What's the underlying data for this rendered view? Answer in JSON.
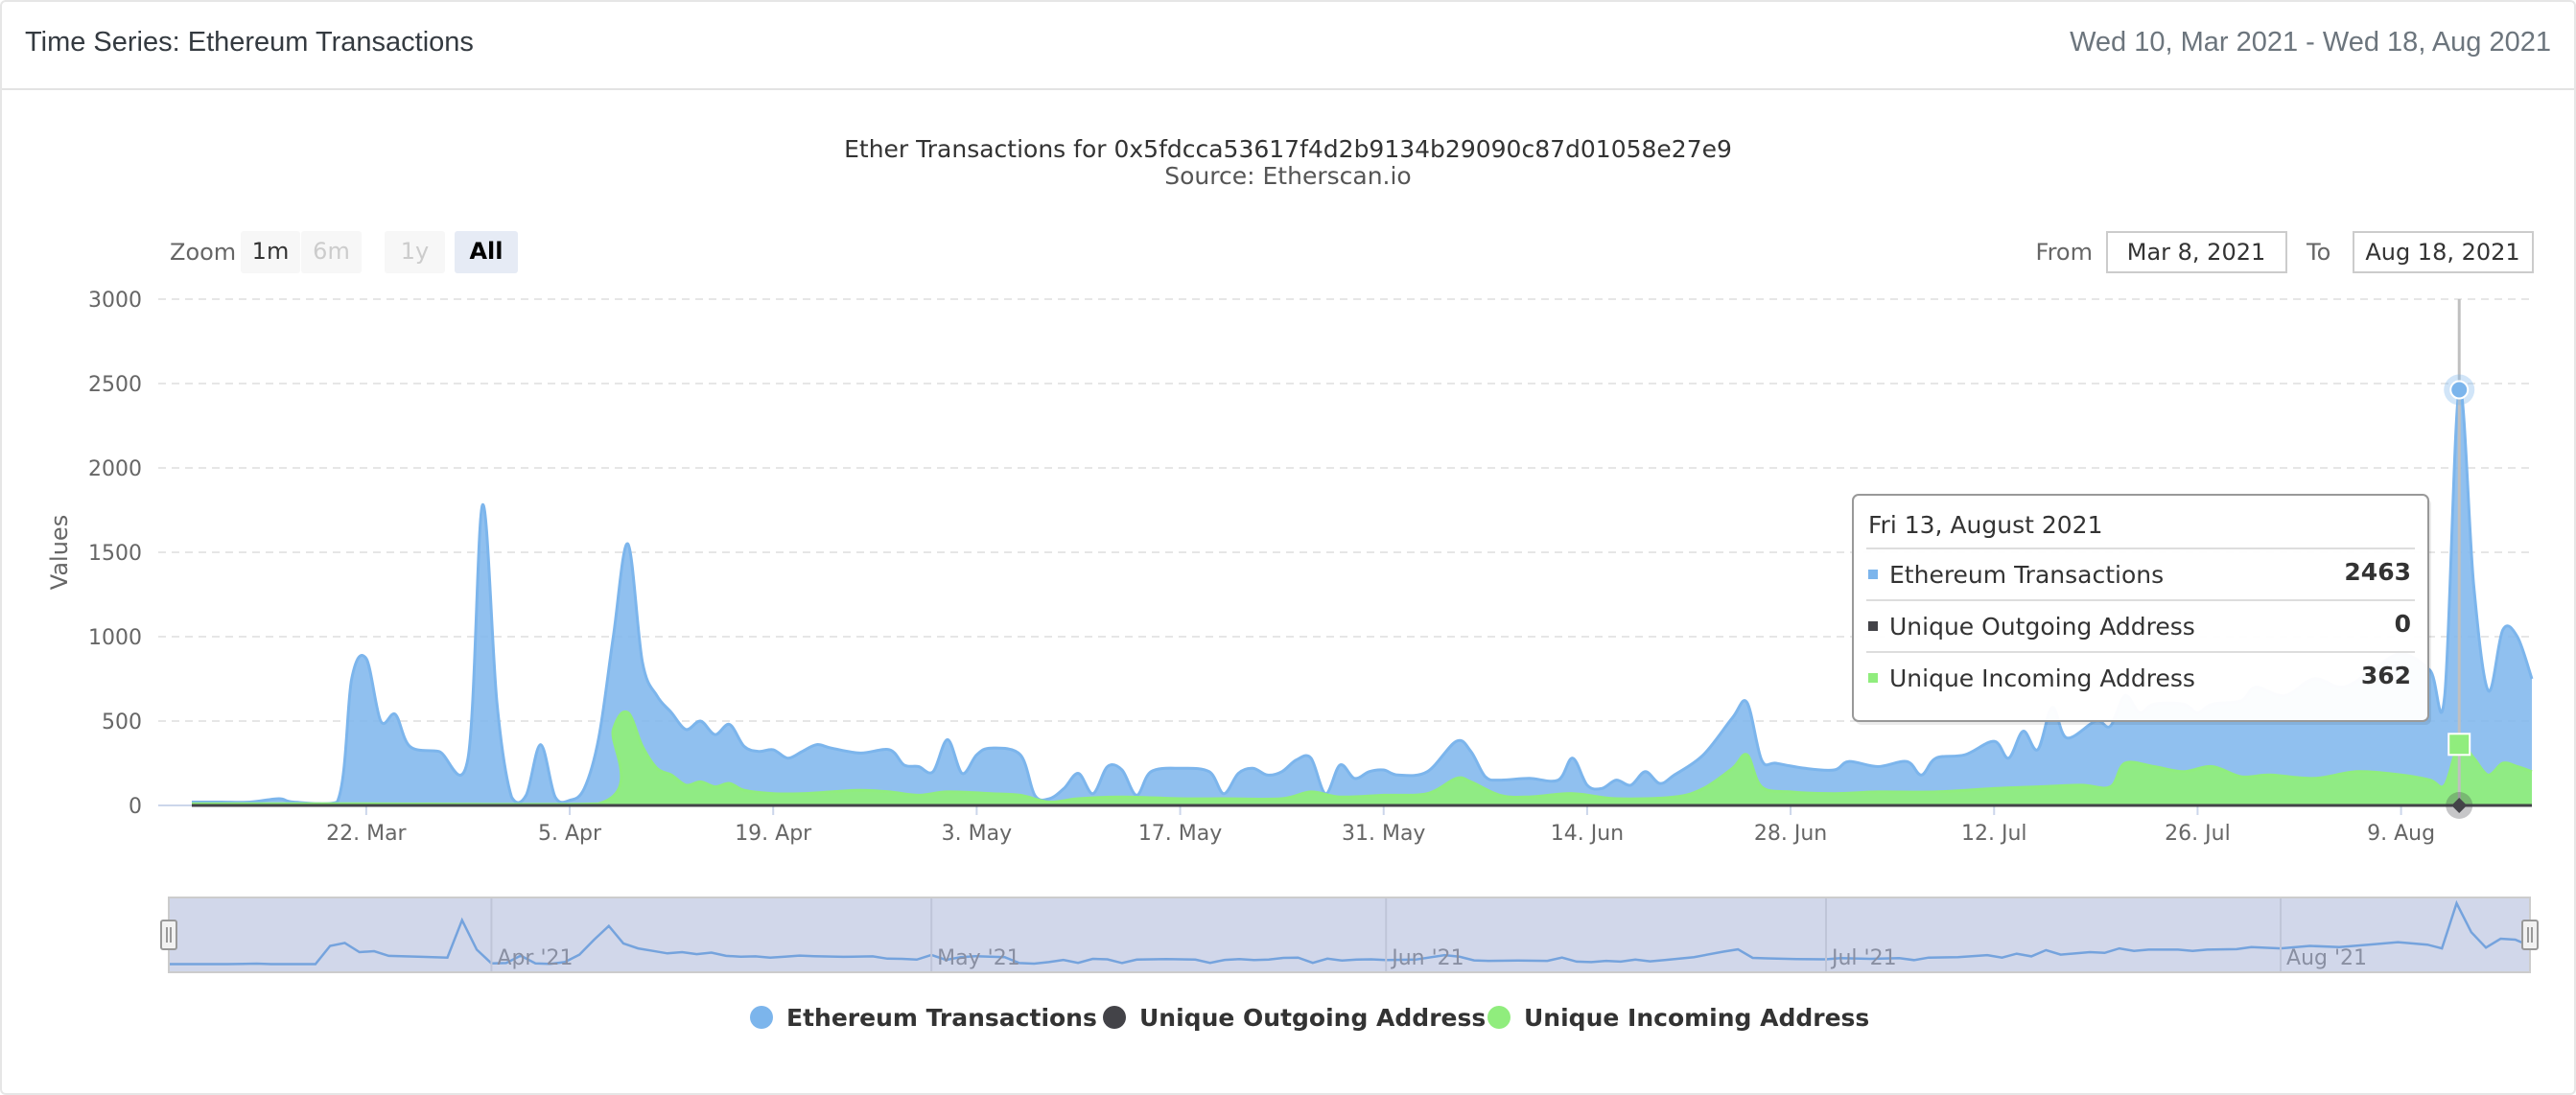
{
  "header": {
    "title": "Time Series: Ethereum Transactions",
    "date_range": "Wed 10, Mar 2021 - Wed 18, Aug 2021"
  },
  "rangeSelector": {
    "zoom_label": "Zoom",
    "buttons": [
      {
        "label": "1m",
        "state": "normal"
      },
      {
        "label": "6m",
        "state": "disabled"
      },
      {
        "label": "1y",
        "state": "disabled"
      },
      {
        "label": "All",
        "state": "active"
      }
    ],
    "from_label": "From",
    "from_value": "Mar 8, 2021",
    "to_label": "To",
    "to_value": "Aug 18, 2021"
  },
  "tooltip": {
    "header": "Fri 13, August 2021",
    "rows": [
      {
        "name": "Ethereum Transactions",
        "value": "2463",
        "color": "#7cb5ec"
      },
      {
        "name": "Unique Outgoing Address",
        "value": "0",
        "color": "#434348"
      },
      {
        "name": "Unique Incoming Address",
        "value": "362",
        "color": "#90ed7d"
      }
    ]
  },
  "chart_data": {
    "type": "area",
    "title": "Ether Transactions for 0x5fdcca53617f4d2b9134b29090c87d01058e27e9",
    "subtitle": "Source: Etherscan.io",
    "ylabel": "Values",
    "ylim": [
      0,
      3000
    ],
    "yticks": [
      0,
      500,
      1000,
      1500,
      2000,
      2500,
      3000
    ],
    "xlim": [
      "2021-03-10",
      "2021-08-18"
    ],
    "xticks": [
      {
        "date": "2021-03-22",
        "label": "22. Mar"
      },
      {
        "date": "2021-04-05",
        "label": "5. Apr"
      },
      {
        "date": "2021-04-19",
        "label": "19. Apr"
      },
      {
        "date": "2021-05-03",
        "label": "3. May"
      },
      {
        "date": "2021-05-17",
        "label": "17. May"
      },
      {
        "date": "2021-05-31",
        "label": "31. May"
      },
      {
        "date": "2021-06-14",
        "label": "14. Jun"
      },
      {
        "date": "2021-06-28",
        "label": "28. Jun"
      },
      {
        "date": "2021-07-12",
        "label": "12. Jul"
      },
      {
        "date": "2021-07-26",
        "label": "26. Jul"
      },
      {
        "date": "2021-08-09",
        "label": "9. Aug"
      }
    ],
    "navigator_ticks": [
      {
        "date": "2021-04-01",
        "label": "Apr '21"
      },
      {
        "date": "2021-05-01",
        "label": "May '21"
      },
      {
        "date": "2021-06-01",
        "label": "Jun '21"
      },
      {
        "date": "2021-07-01",
        "label": "Jul '21"
      },
      {
        "date": "2021-08-01",
        "label": "Aug '21"
      }
    ],
    "grid": true,
    "legend_position": "bottom-center",
    "hovered_date": "2021-08-13",
    "series": [
      {
        "name": "Ethereum Transactions",
        "color": "#7cb5ec",
        "points": [
          [
            "2021-03-10",
            20
          ],
          [
            "2021-03-12",
            20
          ],
          [
            "2021-03-14",
            20
          ],
          [
            "2021-03-16",
            40
          ],
          [
            "2021-03-17",
            20
          ],
          [
            "2021-03-20",
            20
          ],
          [
            "2021-03-21",
            750
          ],
          [
            "2021-03-22",
            870
          ],
          [
            "2021-03-23",
            500
          ],
          [
            "2021-03-24",
            540
          ],
          [
            "2021-03-25",
            350
          ],
          [
            "2021-03-27",
            320
          ],
          [
            "2021-03-29",
            280
          ],
          [
            "2021-03-30",
            1780
          ],
          [
            "2021-03-31",
            600
          ],
          [
            "2021-04-01",
            50
          ],
          [
            "2021-04-02",
            60
          ],
          [
            "2021-04-03",
            360
          ],
          [
            "2021-04-04",
            50
          ],
          [
            "2021-04-05",
            30
          ],
          [
            "2021-04-06",
            100
          ],
          [
            "2021-04-07",
            400
          ],
          [
            "2021-04-08",
            1000
          ],
          [
            "2021-04-09",
            1550
          ],
          [
            "2021-04-10",
            850
          ],
          [
            "2021-04-11",
            650
          ],
          [
            "2021-04-12",
            550
          ],
          [
            "2021-04-13",
            450
          ],
          [
            "2021-04-14",
            500
          ],
          [
            "2021-04-15",
            420
          ],
          [
            "2021-04-16",
            480
          ],
          [
            "2021-04-17",
            350
          ],
          [
            "2021-04-18",
            320
          ],
          [
            "2021-04-19",
            330
          ],
          [
            "2021-04-20",
            280
          ],
          [
            "2021-04-21",
            320
          ],
          [
            "2021-04-22",
            360
          ],
          [
            "2021-04-23",
            340
          ],
          [
            "2021-04-25",
            310
          ],
          [
            "2021-04-27",
            330
          ],
          [
            "2021-04-28",
            240
          ],
          [
            "2021-04-29",
            230
          ],
          [
            "2021-04-30",
            200
          ],
          [
            "2021-05-01",
            390
          ],
          [
            "2021-05-02",
            190
          ],
          [
            "2021-05-03",
            300
          ],
          [
            "2021-05-04",
            340
          ],
          [
            "2021-05-06",
            300
          ],
          [
            "2021-05-07",
            60
          ],
          [
            "2021-05-08",
            40
          ],
          [
            "2021-05-09",
            100
          ],
          [
            "2021-05-10",
            190
          ],
          [
            "2021-05-11",
            70
          ],
          [
            "2021-05-12",
            230
          ],
          [
            "2021-05-13",
            210
          ],
          [
            "2021-05-14",
            60
          ],
          [
            "2021-05-15",
            200
          ],
          [
            "2021-05-17",
            220
          ],
          [
            "2021-05-19",
            200
          ],
          [
            "2021-05-20",
            70
          ],
          [
            "2021-05-21",
            190
          ],
          [
            "2021-05-22",
            220
          ],
          [
            "2021-05-23",
            180
          ],
          [
            "2021-05-24",
            200
          ],
          [
            "2021-05-25",
            270
          ],
          [
            "2021-05-26",
            280
          ],
          [
            "2021-05-27",
            70
          ],
          [
            "2021-05-28",
            240
          ],
          [
            "2021-05-29",
            160
          ],
          [
            "2021-05-30",
            200
          ],
          [
            "2021-05-31",
            210
          ],
          [
            "2021-06-01",
            180
          ],
          [
            "2021-06-03",
            200
          ],
          [
            "2021-06-05",
            380
          ],
          [
            "2021-06-06",
            320
          ],
          [
            "2021-06-07",
            170
          ],
          [
            "2021-06-08",
            150
          ],
          [
            "2021-06-10",
            160
          ],
          [
            "2021-06-12",
            150
          ],
          [
            "2021-06-13",
            280
          ],
          [
            "2021-06-14",
            120
          ],
          [
            "2021-06-15",
            100
          ],
          [
            "2021-06-16",
            150
          ],
          [
            "2021-06-17",
            120
          ],
          [
            "2021-06-18",
            200
          ],
          [
            "2021-06-19",
            130
          ],
          [
            "2021-06-20",
            180
          ],
          [
            "2021-06-22",
            300
          ],
          [
            "2021-06-24",
            520
          ],
          [
            "2021-06-25",
            610
          ],
          [
            "2021-06-26",
            270
          ],
          [
            "2021-06-27",
            250
          ],
          [
            "2021-06-29",
            220
          ],
          [
            "2021-07-01",
            210
          ],
          [
            "2021-07-02",
            260
          ],
          [
            "2021-07-04",
            230
          ],
          [
            "2021-07-06",
            260
          ],
          [
            "2021-07-07",
            180
          ],
          [
            "2021-07-08",
            280
          ],
          [
            "2021-07-10",
            300
          ],
          [
            "2021-07-12",
            380
          ],
          [
            "2021-07-13",
            280
          ],
          [
            "2021-07-14",
            440
          ],
          [
            "2021-07-15",
            330
          ],
          [
            "2021-07-16",
            580
          ],
          [
            "2021-07-17",
            400
          ],
          [
            "2021-07-19",
            500
          ],
          [
            "2021-07-20",
            470
          ],
          [
            "2021-07-21",
            650
          ],
          [
            "2021-07-22",
            550
          ],
          [
            "2021-07-23",
            600
          ],
          [
            "2021-07-25",
            600
          ],
          [
            "2021-07-26",
            550
          ],
          [
            "2021-07-27",
            600
          ],
          [
            "2021-07-29",
            620
          ],
          [
            "2021-07-30",
            700
          ],
          [
            "2021-08-01",
            650
          ],
          [
            "2021-08-03",
            750
          ],
          [
            "2021-08-05",
            700
          ],
          [
            "2021-08-07",
            800
          ],
          [
            "2021-08-09",
            900
          ],
          [
            "2021-08-11",
            800
          ],
          [
            "2021-08-12",
            650
          ],
          [
            "2021-08-13",
            2463
          ],
          [
            "2021-08-14",
            1300
          ],
          [
            "2021-08-15",
            680
          ],
          [
            "2021-08-16",
            1040
          ],
          [
            "2021-08-17",
            1000
          ],
          [
            "2021-08-18",
            750
          ]
        ]
      },
      {
        "name": "Unique Outgoing Address",
        "color": "#434348",
        "points": [
          [
            "2021-03-10",
            0
          ],
          [
            "2021-08-18",
            0
          ]
        ]
      },
      {
        "name": "Unique Incoming Address",
        "color": "#90ed7d",
        "points": [
          [
            "2021-03-10",
            10
          ],
          [
            "2021-03-21",
            10
          ],
          [
            "2021-04-07",
            10
          ],
          [
            "2021-04-08",
            450
          ],
          [
            "2021-04-09",
            550
          ],
          [
            "2021-04-10",
            350
          ],
          [
            "2021-04-11",
            220
          ],
          [
            "2021-04-12",
            180
          ],
          [
            "2021-04-13",
            120
          ],
          [
            "2021-04-14",
            140
          ],
          [
            "2021-04-15",
            110
          ],
          [
            "2021-04-16",
            130
          ],
          [
            "2021-04-17",
            90
          ],
          [
            "2021-04-19",
            70
          ],
          [
            "2021-04-21",
            70
          ],
          [
            "2021-04-23",
            80
          ],
          [
            "2021-04-25",
            90
          ],
          [
            "2021-04-27",
            80
          ],
          [
            "2021-04-29",
            60
          ],
          [
            "2021-05-01",
            80
          ],
          [
            "2021-05-04",
            70
          ],
          [
            "2021-05-06",
            60
          ],
          [
            "2021-05-08",
            20
          ],
          [
            "2021-05-10",
            40
          ],
          [
            "2021-05-13",
            50
          ],
          [
            "2021-05-17",
            40
          ],
          [
            "2021-05-20",
            40
          ],
          [
            "2021-05-24",
            40
          ],
          [
            "2021-05-26",
            80
          ],
          [
            "2021-05-28",
            50
          ],
          [
            "2021-05-31",
            60
          ],
          [
            "2021-06-03",
            70
          ],
          [
            "2021-06-05",
            160
          ],
          [
            "2021-06-06",
            140
          ],
          [
            "2021-06-08",
            60
          ],
          [
            "2021-06-10",
            50
          ],
          [
            "2021-06-13",
            70
          ],
          [
            "2021-06-16",
            40
          ],
          [
            "2021-06-20",
            50
          ],
          [
            "2021-06-22",
            100
          ],
          [
            "2021-06-24",
            220
          ],
          [
            "2021-06-25",
            300
          ],
          [
            "2021-06-26",
            110
          ],
          [
            "2021-06-28",
            80
          ],
          [
            "2021-07-01",
            70
          ],
          [
            "2021-07-04",
            80
          ],
          [
            "2021-07-08",
            80
          ],
          [
            "2021-07-12",
            100
          ],
          [
            "2021-07-15",
            110
          ],
          [
            "2021-07-18",
            120
          ],
          [
            "2021-07-20",
            110
          ],
          [
            "2021-07-21",
            250
          ],
          [
            "2021-07-23",
            230
          ],
          [
            "2021-07-25",
            200
          ],
          [
            "2021-07-27",
            230
          ],
          [
            "2021-07-29",
            170
          ],
          [
            "2021-07-31",
            180
          ],
          [
            "2021-08-03",
            160
          ],
          [
            "2021-08-06",
            200
          ],
          [
            "2021-08-09",
            180
          ],
          [
            "2021-08-11",
            150
          ],
          [
            "2021-08-12",
            120
          ],
          [
            "2021-08-13",
            362
          ],
          [
            "2021-08-14",
            280
          ],
          [
            "2021-08-15",
            180
          ],
          [
            "2021-08-16",
            250
          ],
          [
            "2021-08-17",
            230
          ],
          [
            "2021-08-18",
            200
          ]
        ]
      }
    ]
  }
}
